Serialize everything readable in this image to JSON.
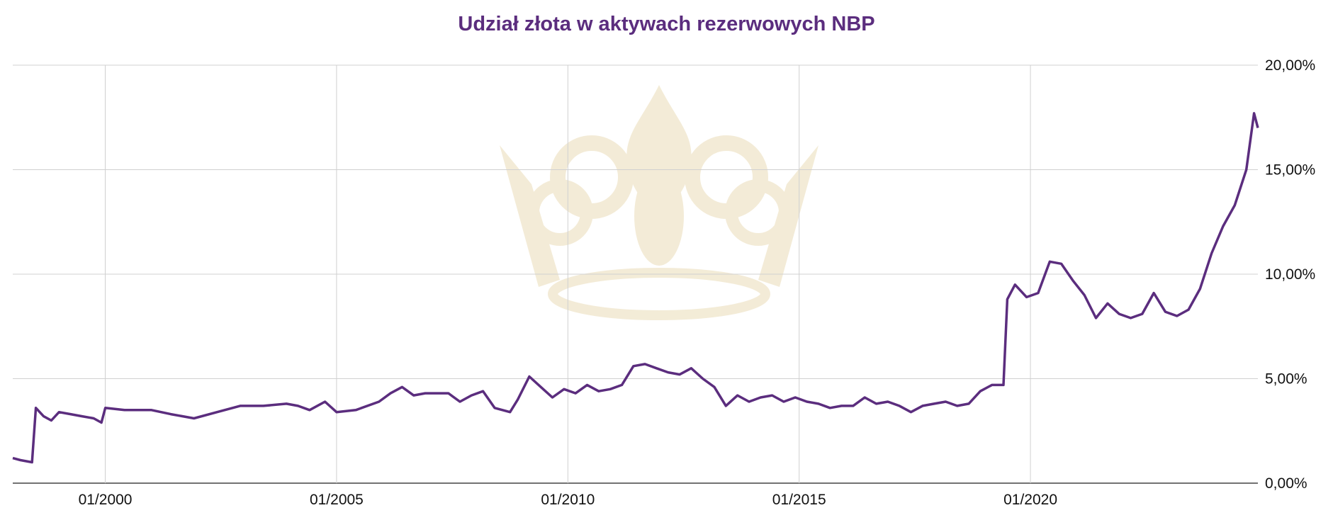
{
  "chart_data": {
    "type": "line",
    "title": "Udział złota w aktywach rezerwowych NBP",
    "xlabel": "",
    "ylabel": "",
    "x_range": [
      "1998-01",
      "2024-12"
    ],
    "ylim": [
      0,
      20
    ],
    "grid": true,
    "legend": "none",
    "x_ticks": [
      {
        "value": "2000-01",
        "label": "01/2000"
      },
      {
        "value": "2005-01",
        "label": "01/2005"
      },
      {
        "value": "2010-01",
        "label": "01/2010"
      },
      {
        "value": "2015-01",
        "label": "01/2015"
      },
      {
        "value": "2020-01",
        "label": "01/2020"
      }
    ],
    "y_ticks": [
      {
        "value": 0,
        "label": "0,00%"
      },
      {
        "value": 5,
        "label": "5,00%"
      },
      {
        "value": 10,
        "label": "10,00%"
      },
      {
        "value": 15,
        "label": "15,00%"
      },
      {
        "value": 20,
        "label": "20,00%"
      }
    ],
    "series": [
      {
        "color": "#5b2d7e",
        "points": [
          [
            "1998-01",
            1.2
          ],
          [
            "1998-03",
            1.1
          ],
          [
            "1998-06",
            1.0
          ],
          [
            "1998-07",
            3.6
          ],
          [
            "1998-09",
            3.2
          ],
          [
            "1998-11",
            3.0
          ],
          [
            "1999-01",
            3.4
          ],
          [
            "1999-04",
            3.3
          ],
          [
            "1999-07",
            3.2
          ],
          [
            "1999-10",
            3.1
          ],
          [
            "1999-12",
            2.9
          ],
          [
            "2000-01",
            3.6
          ],
          [
            "2000-06",
            3.5
          ],
          [
            "2001-01",
            3.5
          ],
          [
            "2001-06",
            3.3
          ],
          [
            "2001-12",
            3.1
          ],
          [
            "2002-06",
            3.4
          ],
          [
            "2002-12",
            3.7
          ],
          [
            "2003-06",
            3.7
          ],
          [
            "2003-12",
            3.8
          ],
          [
            "2004-03",
            3.7
          ],
          [
            "2004-06",
            3.5
          ],
          [
            "2004-10",
            3.9
          ],
          [
            "2005-01",
            3.4
          ],
          [
            "2005-06",
            3.5
          ],
          [
            "2005-12",
            3.9
          ],
          [
            "2006-03",
            4.3
          ],
          [
            "2006-06",
            4.6
          ],
          [
            "2006-09",
            4.2
          ],
          [
            "2006-12",
            4.3
          ],
          [
            "2007-06",
            4.3
          ],
          [
            "2007-09",
            3.9
          ],
          [
            "2007-12",
            4.2
          ],
          [
            "2008-03",
            4.4
          ],
          [
            "2008-06",
            3.6
          ],
          [
            "2008-10",
            3.4
          ],
          [
            "2008-12",
            4.0
          ],
          [
            "2009-03",
            5.1
          ],
          [
            "2009-06",
            4.6
          ],
          [
            "2009-09",
            4.1
          ],
          [
            "2009-12",
            4.5
          ],
          [
            "2010-03",
            4.3
          ],
          [
            "2010-06",
            4.7
          ],
          [
            "2010-09",
            4.4
          ],
          [
            "2010-12",
            4.5
          ],
          [
            "2011-03",
            4.7
          ],
          [
            "2011-06",
            5.6
          ],
          [
            "2011-09",
            5.7
          ],
          [
            "2011-12",
            5.5
          ],
          [
            "2012-03",
            5.3
          ],
          [
            "2012-06",
            5.2
          ],
          [
            "2012-09",
            5.5
          ],
          [
            "2012-12",
            5.0
          ],
          [
            "2013-03",
            4.6
          ],
          [
            "2013-06",
            3.7
          ],
          [
            "2013-09",
            4.2
          ],
          [
            "2013-12",
            3.9
          ],
          [
            "2014-03",
            4.1
          ],
          [
            "2014-06",
            4.2
          ],
          [
            "2014-09",
            3.9
          ],
          [
            "2014-12",
            4.1
          ],
          [
            "2015-03",
            3.9
          ],
          [
            "2015-06",
            3.8
          ],
          [
            "2015-09",
            3.6
          ],
          [
            "2015-12",
            3.7
          ],
          [
            "2016-03",
            3.7
          ],
          [
            "2016-06",
            4.1
          ],
          [
            "2016-09",
            3.8
          ],
          [
            "2016-12",
            3.9
          ],
          [
            "2017-03",
            3.7
          ],
          [
            "2017-06",
            3.4
          ],
          [
            "2017-09",
            3.7
          ],
          [
            "2017-12",
            3.8
          ],
          [
            "2018-03",
            3.9
          ],
          [
            "2018-06",
            3.7
          ],
          [
            "2018-09",
            3.8
          ],
          [
            "2018-12",
            4.4
          ],
          [
            "2019-03",
            4.7
          ],
          [
            "2019-06",
            4.7
          ],
          [
            "2019-07",
            8.8
          ],
          [
            "2019-09",
            9.5
          ],
          [
            "2019-12",
            8.9
          ],
          [
            "2020-03",
            9.1
          ],
          [
            "2020-06",
            10.6
          ],
          [
            "2020-09",
            10.5
          ],
          [
            "2020-12",
            9.7
          ],
          [
            "2021-03",
            9.0
          ],
          [
            "2021-06",
            7.9
          ],
          [
            "2021-09",
            8.6
          ],
          [
            "2021-12",
            8.1
          ],
          [
            "2022-03",
            7.9
          ],
          [
            "2022-06",
            8.1
          ],
          [
            "2022-09",
            9.1
          ],
          [
            "2022-12",
            8.2
          ],
          [
            "2023-03",
            8.0
          ],
          [
            "2023-06",
            8.3
          ],
          [
            "2023-09",
            9.3
          ],
          [
            "2023-12",
            11.0
          ],
          [
            "2024-03",
            12.3
          ],
          [
            "2024-06",
            13.3
          ],
          [
            "2024-09",
            15.0
          ],
          [
            "2024-11",
            17.7
          ],
          [
            "2024-12",
            17.0
          ]
        ]
      }
    ]
  }
}
